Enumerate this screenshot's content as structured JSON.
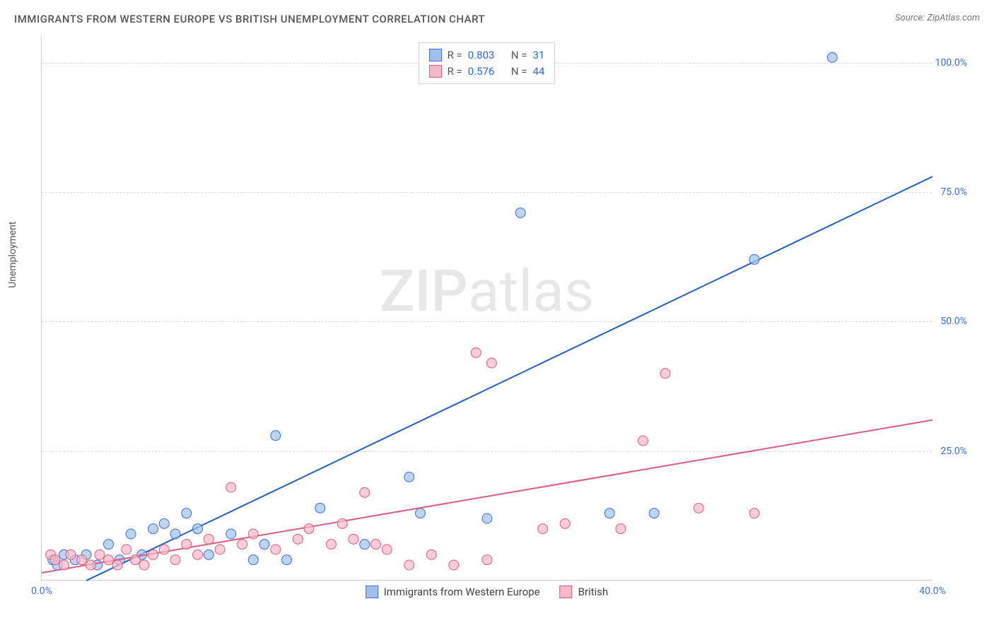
{
  "header": {
    "title": "IMMIGRANTS FROM WESTERN EUROPE VS BRITISH UNEMPLOYMENT CORRELATION CHART",
    "source_label": "Source:",
    "source_value": "ZipAtlas.com"
  },
  "watermark": {
    "zip": "ZIP",
    "atlas": "atlas"
  },
  "chart": {
    "type": "scatter",
    "ylabel": "Unemployment",
    "xlim": [
      0,
      40
    ],
    "ylim": [
      0,
      105
    ],
    "x_ticks": [
      {
        "value": 0,
        "label": "0.0%"
      },
      {
        "value": 40,
        "label": "40.0%"
      }
    ],
    "y_ticks": [
      {
        "value": 25,
        "label": "25.0%"
      },
      {
        "value": 50,
        "label": "50.0%"
      },
      {
        "value": 75,
        "label": "75.0%"
      },
      {
        "value": 100,
        "label": "100.0%"
      }
    ],
    "grid_color": "#d8d8d8",
    "axis_color": "#cfcfcf",
    "background_color": "#ffffff",
    "tick_label_color": "#3a6fd8",
    "axis_label_color": "#555555",
    "axis_label_fontsize": 14,
    "tick_fontsize": 14,
    "series": [
      {
        "id": "immigrants_we",
        "name": "Immigrants from Western Europe",
        "R": "0.803",
        "N": "31",
        "marker_fill": "#9fc1ec",
        "marker_stroke": "#3a6fd8",
        "marker_opacity": 0.7,
        "marker_radius": 7,
        "line_color": "#1f5fc7",
        "line_width": 2,
        "trend_line": {
          "x1": 2.0,
          "y1": 0,
          "x2": 40,
          "y2": 78
        },
        "points": [
          {
            "x": 0.5,
            "y": 4
          },
          {
            "x": 0.7,
            "y": 3
          },
          {
            "x": 1.0,
            "y": 5
          },
          {
            "x": 1.5,
            "y": 4
          },
          {
            "x": 2.0,
            "y": 5
          },
          {
            "x": 2.5,
            "y": 3
          },
          {
            "x": 3.0,
            "y": 7
          },
          {
            "x": 3.5,
            "y": 4
          },
          {
            "x": 4.0,
            "y": 9
          },
          {
            "x": 4.5,
            "y": 5
          },
          {
            "x": 5.0,
            "y": 10
          },
          {
            "x": 5.5,
            "y": 11
          },
          {
            "x": 6.0,
            "y": 9
          },
          {
            "x": 6.5,
            "y": 13
          },
          {
            "x": 7.0,
            "y": 10
          },
          {
            "x": 7.5,
            "y": 5
          },
          {
            "x": 8.5,
            "y": 9
          },
          {
            "x": 9.5,
            "y": 4
          },
          {
            "x": 10.0,
            "y": 7
          },
          {
            "x": 10.5,
            "y": 28
          },
          {
            "x": 11.0,
            "y": 4
          },
          {
            "x": 12.5,
            "y": 14
          },
          {
            "x": 14.5,
            "y": 7
          },
          {
            "x": 16.5,
            "y": 20
          },
          {
            "x": 17.0,
            "y": 13
          },
          {
            "x": 21.5,
            "y": 71
          },
          {
            "x": 25.5,
            "y": 13
          },
          {
            "x": 27.5,
            "y": 13
          },
          {
            "x": 32.0,
            "y": 62
          },
          {
            "x": 35.5,
            "y": 101
          },
          {
            "x": 20.0,
            "y": 12
          }
        ]
      },
      {
        "id": "british",
        "name": "British",
        "R": "0.576",
        "N": "44",
        "marker_fill": "#f3b9c7",
        "marker_stroke": "#e05a7d",
        "marker_opacity": 0.7,
        "marker_radius": 7,
        "line_color": "#e05a7d",
        "line_width": 2,
        "trend_line": {
          "x1": 0,
          "y1": 1.5,
          "x2": 40,
          "y2": 31
        },
        "points": [
          {
            "x": 0.4,
            "y": 5
          },
          {
            "x": 0.6,
            "y": 4
          },
          {
            "x": 1.0,
            "y": 3
          },
          {
            "x": 1.3,
            "y": 5
          },
          {
            "x": 1.8,
            "y": 4
          },
          {
            "x": 2.2,
            "y": 3
          },
          {
            "x": 2.6,
            "y": 5
          },
          {
            "x": 3.0,
            "y": 4
          },
          {
            "x": 3.4,
            "y": 3
          },
          {
            "x": 3.8,
            "y": 6
          },
          {
            "x": 4.2,
            "y": 4
          },
          {
            "x": 4.6,
            "y": 3
          },
          {
            "x": 5.0,
            "y": 5
          },
          {
            "x": 5.5,
            "y": 6
          },
          {
            "x": 6.0,
            "y": 4
          },
          {
            "x": 6.5,
            "y": 7
          },
          {
            "x": 7.0,
            "y": 5
          },
          {
            "x": 7.5,
            "y": 8
          },
          {
            "x": 8.0,
            "y": 6
          },
          {
            "x": 8.5,
            "y": 18
          },
          {
            "x": 9.0,
            "y": 7
          },
          {
            "x": 9.5,
            "y": 9
          },
          {
            "x": 10.5,
            "y": 6
          },
          {
            "x": 11.5,
            "y": 8
          },
          {
            "x": 12.0,
            "y": 10
          },
          {
            "x": 13.0,
            "y": 7
          },
          {
            "x": 13.5,
            "y": 11
          },
          {
            "x": 14.0,
            "y": 8
          },
          {
            "x": 14.5,
            "y": 17
          },
          {
            "x": 15.0,
            "y": 7
          },
          {
            "x": 15.5,
            "y": 6
          },
          {
            "x": 16.5,
            "y": 3
          },
          {
            "x": 17.5,
            "y": 5
          },
          {
            "x": 18.5,
            "y": 3
          },
          {
            "x": 19.5,
            "y": 44
          },
          {
            "x": 20.0,
            "y": 4
          },
          {
            "x": 20.2,
            "y": 42
          },
          {
            "x": 22.5,
            "y": 10
          },
          {
            "x": 23.5,
            "y": 11
          },
          {
            "x": 26.0,
            "y": 10
          },
          {
            "x": 27.0,
            "y": 27
          },
          {
            "x": 28.0,
            "y": 40
          },
          {
            "x": 29.5,
            "y": 14
          },
          {
            "x": 32.0,
            "y": 13
          }
        ]
      }
    ],
    "correlation_legend_labels": {
      "R": "R =",
      "N": "N ="
    },
    "bottom_legend": [
      {
        "label": "Immigrants from Western Europe",
        "fill": "#9fc1ec",
        "stroke": "#3a6fd8"
      },
      {
        "label": "British",
        "fill": "#f3b9c7",
        "stroke": "#e05a7d"
      }
    ]
  }
}
